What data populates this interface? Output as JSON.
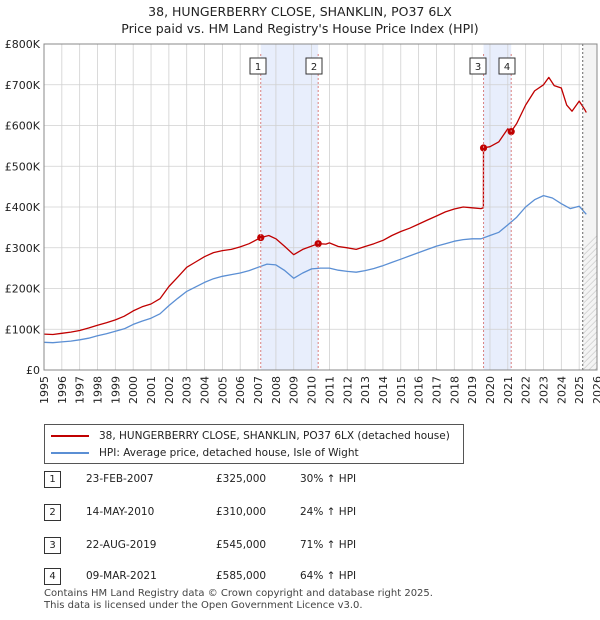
{
  "title_line1": "38, HUNGERBERRY CLOSE, SHANKLIN, PO37 6LX",
  "title_line2": "Price paid vs. HM Land Registry's House Price Index (HPI)",
  "colors": {
    "property": "#c00000",
    "hpi": "#5b8fd4",
    "shade": "#e8eefc",
    "marker_line": "#d98080",
    "grid": "#d0d0d0"
  },
  "legend": [
    {
      "label": "38, HUNGERBERRY CLOSE, SHANKLIN, PO37 6LX (detached house)"
    },
    {
      "label": "HPI: Average price, detached house, Isle of Wight"
    }
  ],
  "sales": [
    {
      "num": "1",
      "date": "23-FEB-2007",
      "price": "£325,000",
      "hpi": "30% ↑ HPI"
    },
    {
      "num": "2",
      "date": "14-MAY-2010",
      "price": "£310,000",
      "hpi": "24% ↑ HPI"
    },
    {
      "num": "3",
      "date": "22-AUG-2019",
      "price": "£545,000",
      "hpi": "71% ↑ HPI"
    },
    {
      "num": "4",
      "date": "09-MAR-2021",
      "price": "£585,000",
      "hpi": "64% ↑ HPI"
    }
  ],
  "footer_line1": "Contains HM Land Registry data © Crown copyright and database right 2025.",
  "footer_line2": "This data is licensed under the Open Government Licence v3.0.",
  "chart_data": {
    "type": "line",
    "title": "Price paid vs. HM Land Registry's House Price Index (HPI)",
    "xlim": [
      1995,
      2026
    ],
    "ylim": [
      0,
      800000
    ],
    "x_ticks": [
      1995,
      1996,
      1997,
      1998,
      1999,
      2000,
      2001,
      2002,
      2003,
      2004,
      2005,
      2006,
      2007,
      2008,
      2009,
      2010,
      2011,
      2012,
      2013,
      2014,
      2015,
      2016,
      2017,
      2018,
      2019,
      2020,
      2021,
      2022,
      2023,
      2024,
      2025,
      2026
    ],
    "y_ticks": [
      {
        "value": 0,
        "label": "£0"
      },
      {
        "value": 100000,
        "label": "£100K"
      },
      {
        "value": 200000,
        "label": "£200K"
      },
      {
        "value": 300000,
        "label": "£300K"
      },
      {
        "value": 400000,
        "label": "£400K"
      },
      {
        "value": 500000,
        "label": "£500K"
      },
      {
        "value": 600000,
        "label": "£600K"
      },
      {
        "value": 700000,
        "label": "£700K"
      },
      {
        "value": 800000,
        "label": "£800K"
      }
    ],
    "grid": true,
    "shaded_periods": [
      [
        2007.15,
        2010.37
      ],
      [
        2019.64,
        2021.19
      ]
    ],
    "forecast_start": 2025.2,
    "series": [
      {
        "name": "38, HUNGERBERRY CLOSE, SHANKLIN, PO37 6LX (detached house)",
        "x": [
          1995,
          1995.5,
          1996,
          1996.5,
          1997,
          1997.5,
          1998,
          1998.5,
          1999,
          1999.5,
          2000,
          2000.5,
          2001,
          2001.5,
          2002,
          2002.5,
          2003,
          2003.5,
          2004,
          2004.5,
          2005,
          2005.5,
          2006,
          2006.5,
          2007.15,
          2007.6,
          2008,
          2008.5,
          2009,
          2009.5,
          2010.37,
          2010.8,
          2011,
          2011.5,
          2012,
          2012.5,
          2013,
          2013.5,
          2014,
          2014.5,
          2015,
          2015.5,
          2016,
          2016.5,
          2017,
          2017.5,
          2018,
          2018.5,
          2019,
          2019.5,
          2019.63,
          2019.64,
          2020,
          2020.5,
          2021.0,
          2021.19,
          2021.5,
          2022,
          2022.5,
          2023,
          2023.3,
          2023.6,
          2024,
          2024.3,
          2024.6,
          2025,
          2025.3,
          2025.4
        ],
        "values": [
          88000,
          87000,
          90000,
          93000,
          97000,
          103000,
          110000,
          116000,
          123000,
          132000,
          145000,
          155000,
          162000,
          175000,
          205000,
          228000,
          252000,
          265000,
          278000,
          288000,
          293000,
          296000,
          302000,
          310000,
          325000,
          330000,
          322000,
          303000,
          283000,
          296000,
          310000,
          309000,
          312000,
          303000,
          300000,
          296000,
          303000,
          310000,
          318000,
          330000,
          340000,
          348000,
          358000,
          368000,
          378000,
          388000,
          395000,
          400000,
          398000,
          396000,
          398000,
          545000,
          548000,
          560000,
          592000,
          585000,
          605000,
          650000,
          685000,
          700000,
          718000,
          698000,
          692000,
          650000,
          635000,
          660000,
          640000,
          632000
        ]
      },
      {
        "name": "HPI: Average price, detached house, Isle of Wight",
        "x": [
          1995,
          1995.5,
          1996,
          1996.5,
          1997,
          1997.5,
          1998,
          1998.5,
          1999,
          1999.5,
          2000,
          2000.5,
          2001,
          2001.5,
          2002,
          2002.5,
          2003,
          2003.5,
          2004,
          2004.5,
          2005,
          2005.5,
          2006,
          2006.5,
          2007,
          2007.5,
          2008,
          2008.5,
          2009,
          2009.5,
          2010,
          2010.5,
          2011,
          2011.5,
          2012,
          2012.5,
          2013,
          2013.5,
          2014,
          2014.5,
          2015,
          2015.5,
          2016,
          2016.5,
          2017,
          2017.5,
          2018,
          2018.5,
          2019,
          2019.5,
          2020,
          2020.5,
          2021,
          2021.5,
          2022,
          2022.5,
          2023,
          2023.5,
          2024,
          2024.5,
          2025,
          2025.4
        ],
        "values": [
          68000,
          67000,
          69000,
          71000,
          74000,
          78000,
          84000,
          89000,
          95000,
          101000,
          112000,
          120000,
          127000,
          138000,
          158000,
          176000,
          193000,
          204000,
          215000,
          224000,
          230000,
          234000,
          238000,
          244000,
          252000,
          260000,
          258000,
          244000,
          225000,
          238000,
          248000,
          250000,
          250000,
          245000,
          242000,
          240000,
          244000,
          249000,
          256000,
          264000,
          272000,
          280000,
          288000,
          296000,
          304000,
          310000,
          316000,
          320000,
          322000,
          322000,
          330000,
          338000,
          356000,
          375000,
          400000,
          418000,
          428000,
          422000,
          408000,
          396000,
          402000,
          382000
        ]
      }
    ],
    "sale_markers": [
      {
        "label": "1",
        "x": 2007.15,
        "y": 325000
      },
      {
        "label": "2",
        "x": 2010.37,
        "y": 310000
      },
      {
        "label": "3",
        "x": 2019.64,
        "y": 545000
      },
      {
        "label": "4",
        "x": 2021.19,
        "y": 585000
      }
    ]
  }
}
